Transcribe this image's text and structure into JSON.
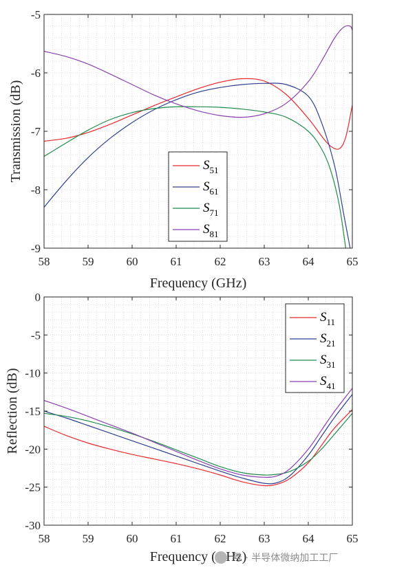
{
  "chart_data": [
    {
      "type": "line",
      "xlabel": "Frequency (GHz)",
      "ylabel": "Transmission (dB)",
      "xlim": [
        58,
        65
      ],
      "ylim": [
        -9,
        -5
      ],
      "xticks": [
        "58",
        "59",
        "60",
        "61",
        "62",
        "63",
        "64",
        "65"
      ],
      "yticks": [
        "-5",
        "-6",
        "-7",
        "-8",
        "-9"
      ],
      "grid": "minor dotted",
      "legend": "center-left",
      "series": [
        {
          "name": "S",
          "sub": "51",
          "color": "#e8262a",
          "x": [
            58,
            58.5,
            59,
            59.5,
            60,
            60.5,
            61,
            61.5,
            62,
            62.5,
            63,
            63.5,
            64,
            64.3,
            64.5,
            64.7,
            64.85,
            65
          ],
          "y": [
            -7.17,
            -7.12,
            -7.02,
            -6.88,
            -6.72,
            -6.56,
            -6.41,
            -6.27,
            -6.16,
            -6.1,
            -6.14,
            -6.37,
            -6.78,
            -7.08,
            -7.25,
            -7.3,
            -7.1,
            -6.55
          ]
        },
        {
          "name": "S",
          "sub": "61",
          "color": "#2e3f8f",
          "x": [
            58,
            58.5,
            59,
            59.5,
            60,
            60.5,
            61,
            61.5,
            62,
            62.5,
            63,
            63.5,
            64,
            64.3,
            64.6,
            64.8,
            64.95
          ],
          "y": [
            -8.3,
            -7.85,
            -7.45,
            -7.12,
            -6.85,
            -6.63,
            -6.46,
            -6.33,
            -6.25,
            -6.2,
            -6.18,
            -6.2,
            -6.4,
            -6.85,
            -7.6,
            -8.4,
            -9.0
          ]
        },
        {
          "name": "S",
          "sub": "71",
          "color": "#1f8a4c",
          "x": [
            58,
            58.5,
            59,
            59.5,
            60,
            60.5,
            61,
            61.5,
            62,
            62.5,
            63,
            63.5,
            64,
            64.3,
            64.5,
            64.7,
            64.85
          ],
          "y": [
            -7.43,
            -7.2,
            -6.98,
            -6.8,
            -6.68,
            -6.61,
            -6.58,
            -6.58,
            -6.59,
            -6.62,
            -6.67,
            -6.76,
            -7.0,
            -7.3,
            -7.65,
            -8.25,
            -9.0
          ]
        },
        {
          "name": "S",
          "sub": "81",
          "color": "#8a3fb0",
          "x": [
            58,
            58.5,
            59,
            59.5,
            60,
            60.5,
            61,
            61.5,
            62,
            62.5,
            63,
            63.5,
            64,
            64.3,
            64.6,
            64.8,
            64.95,
            65
          ],
          "y": [
            -5.63,
            -5.72,
            -5.85,
            -6.02,
            -6.2,
            -6.38,
            -6.53,
            -6.65,
            -6.73,
            -6.76,
            -6.7,
            -6.52,
            -6.15,
            -5.8,
            -5.4,
            -5.22,
            -5.2,
            -5.27
          ]
        }
      ]
    },
    {
      "type": "line",
      "xlabel": "Frequency (GHz)",
      "ylabel": "Reflection (dB)",
      "xlim": [
        58,
        65
      ],
      "ylim": [
        -30,
        0
      ],
      "xticks": [
        "58",
        "59",
        "60",
        "61",
        "62",
        "63",
        "64",
        "65"
      ],
      "yticks": [
        "0",
        "-5",
        "-10",
        "-15",
        "-20",
        "-25",
        "-30"
      ],
      "grid": "minor dotted",
      "legend": "top-right",
      "series": [
        {
          "name": "S",
          "sub": "11",
          "color": "#e8262a",
          "x": [
            58,
            58.5,
            59,
            59.5,
            60,
            60.5,
            61,
            61.5,
            62,
            62.5,
            63,
            63.3,
            63.6,
            64,
            64.3,
            64.6,
            65
          ],
          "y": [
            -17.0,
            -18.2,
            -19.2,
            -20.0,
            -20.7,
            -21.3,
            -21.9,
            -22.6,
            -23.4,
            -24.3,
            -24.8,
            -24.6,
            -23.8,
            -21.8,
            -19.5,
            -17.2,
            -14.8
          ]
        },
        {
          "name": "S",
          "sub": "21",
          "color": "#2e3f8f",
          "x": [
            58,
            58.5,
            59,
            59.5,
            60,
            60.5,
            61,
            61.5,
            62,
            62.5,
            63,
            63.3,
            63.6,
            64,
            64.3,
            64.6,
            65
          ],
          "y": [
            -15.0,
            -15.9,
            -16.9,
            -17.9,
            -18.9,
            -19.9,
            -20.9,
            -21.9,
            -22.9,
            -23.8,
            -24.5,
            -24.4,
            -23.4,
            -20.8,
            -18.3,
            -15.8,
            -12.8
          ]
        },
        {
          "name": "S",
          "sub": "31",
          "color": "#1f8a4c",
          "x": [
            58,
            58.5,
            59,
            59.5,
            60,
            60.5,
            61,
            61.5,
            62,
            62.5,
            63,
            63.3,
            63.6,
            64,
            64.3,
            64.6,
            65
          ],
          "y": [
            -15.3,
            -15.7,
            -16.3,
            -17.1,
            -18.0,
            -19.0,
            -20.1,
            -21.2,
            -22.3,
            -23.1,
            -23.4,
            -23.3,
            -22.9,
            -21.6,
            -20.0,
            -18.0,
            -15.3
          ]
        },
        {
          "name": "S",
          "sub": "41",
          "color": "#8a3fb0",
          "x": [
            58,
            58.5,
            59,
            59.5,
            60,
            60.5,
            61,
            61.5,
            62,
            62.5,
            63,
            63.3,
            63.6,
            64,
            64.3,
            64.6,
            65
          ],
          "y": [
            -13.6,
            -14.6,
            -15.7,
            -16.8,
            -17.9,
            -19.1,
            -20.3,
            -21.5,
            -22.6,
            -23.4,
            -23.7,
            -23.5,
            -22.5,
            -20.0,
            -17.5,
            -15.0,
            -12.0
          ]
        }
      ]
    }
  ],
  "watermark": "号 · 半导体微纳加工工厂"
}
